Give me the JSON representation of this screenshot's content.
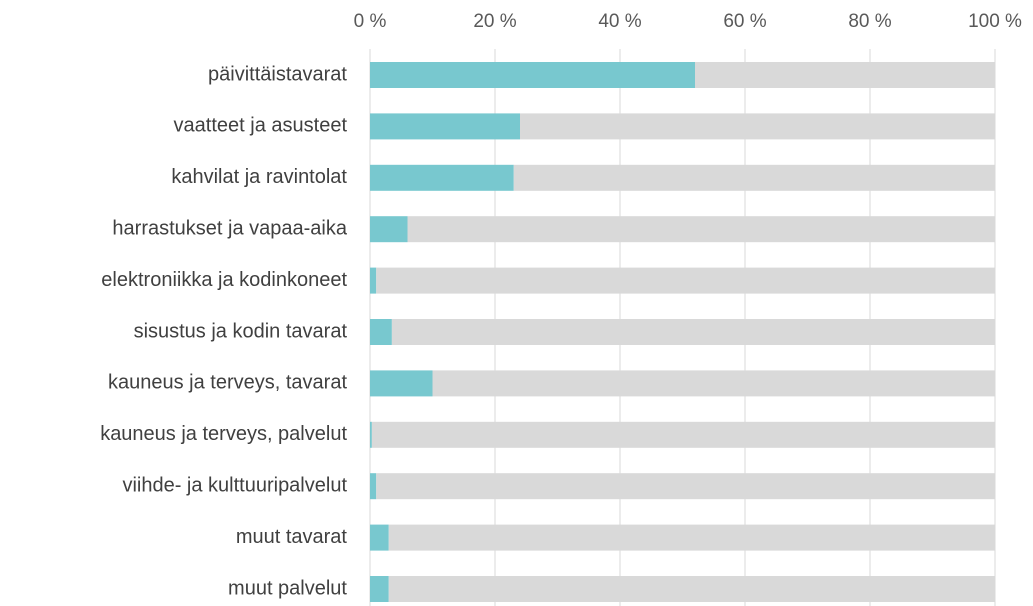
{
  "chart_data": {
    "type": "stacked-barh",
    "categories": [
      "päivittäistavarat",
      "vaatteet ja asusteet",
      "kahvilat ja ravintolat",
      "harrastukset ja vapaa-aika",
      "elektroniikka ja kodinkoneet",
      "sisustus ja kodin tavarat",
      "kauneus ja terveys, tavarat",
      "kauneus ja terveys, palvelut",
      "viihde- ja kulttuuripalvelut",
      "muut tavarat",
      "muut palvelut"
    ],
    "series": [
      {
        "color": "#78c8cf",
        "values": [
          52,
          24,
          23,
          6,
          1,
          3.5,
          10,
          0.3,
          1,
          3,
          3
        ]
      },
      {
        "color": "#d9d9d9",
        "values": [
          48,
          76,
          77,
          94,
          99,
          96.5,
          90,
          99.7,
          99,
          97,
          97
        ]
      }
    ],
    "xlim": [
      0,
      100
    ],
    "xticks": [
      {
        "value": 0,
        "label": "0 %"
      },
      {
        "value": 20,
        "label": "20 %"
      },
      {
        "value": 40,
        "label": "40 %"
      },
      {
        "value": 60,
        "label": "60 %"
      },
      {
        "value": 80,
        "label": "80 %"
      },
      {
        "value": 100,
        "label": "100 %"
      }
    ],
    "grid": true
  }
}
